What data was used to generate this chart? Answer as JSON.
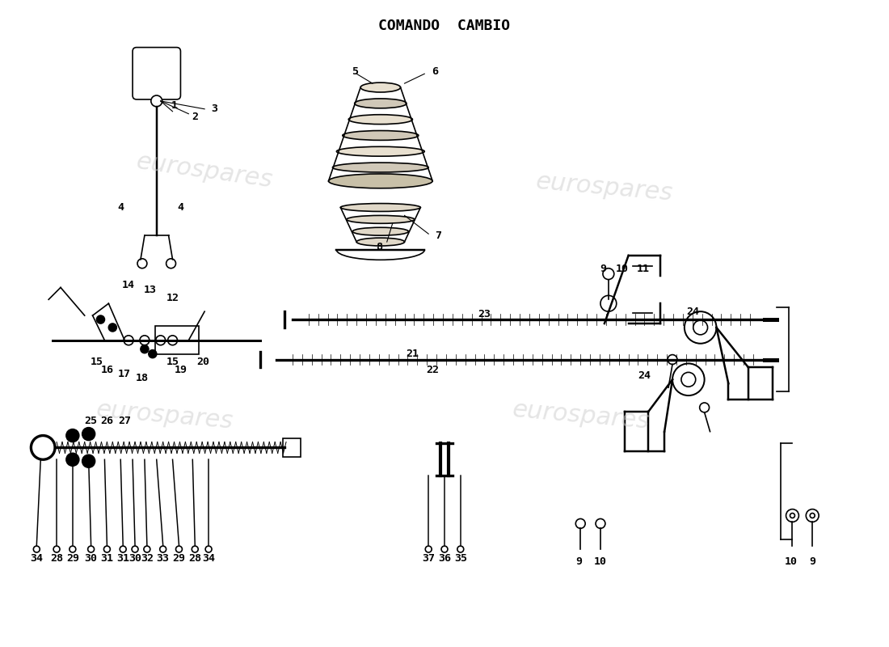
{
  "title": "COMANDO  CAMBIO",
  "bg_color": "#ffffff",
  "line_color": "#000000",
  "watermark_color": "#d0d0d0",
  "watermark_text": "eurospares",
  "title_fontsize": 13,
  "label_fontsize": 9.5,
  "fig_width": 11.0,
  "fig_height": 8.0,
  "dpi": 100
}
